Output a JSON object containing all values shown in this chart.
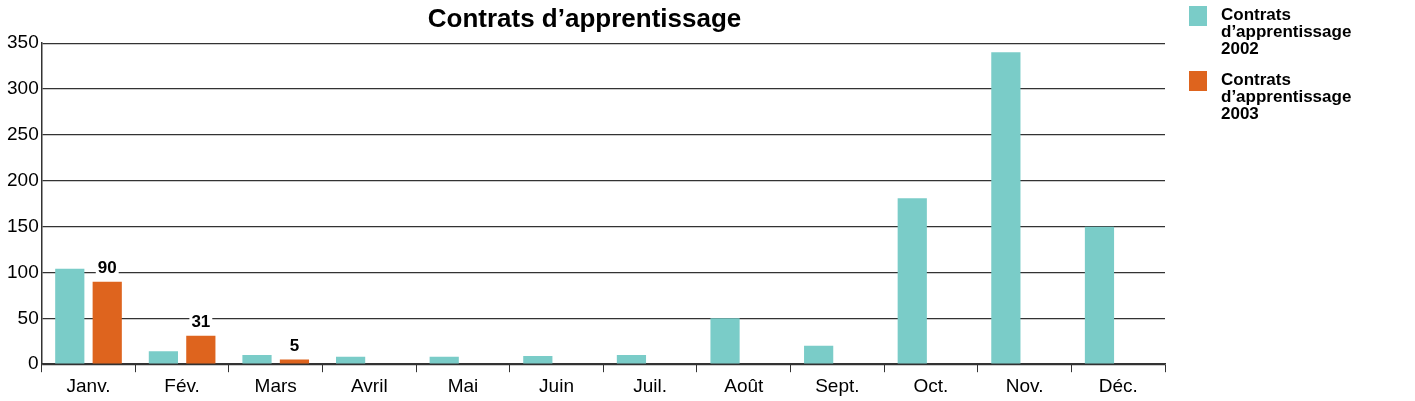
{
  "chart_data": {
    "type": "bar",
    "title": "Contrats d’apprentissage",
    "categories": [
      "Janv.",
      "Fév.",
      "Mars",
      "Avril",
      "Mai",
      "Juin",
      "Juil.",
      "Août",
      "Sept.",
      "Oct.",
      "Nov.",
      "Déc."
    ],
    "series": [
      {
        "name": "Contrats d’apprentissage 2002",
        "color": "#7accc8",
        "values": [
          104,
          14,
          10,
          8,
          8,
          9,
          10,
          50,
          20,
          181,
          340,
          150
        ]
      },
      {
        "name": "Contrats d’apprentissage 2003",
        "color": "#de641e",
        "values": [
          90,
          31,
          5,
          null,
          null,
          null,
          null,
          null,
          null,
          null,
          null,
          null
        ],
        "value_labels": [
          "90",
          "31",
          "5",
          null,
          null,
          null,
          null,
          null,
          null,
          null,
          null,
          null
        ]
      }
    ],
    "ylim": [
      0,
      350
    ],
    "yticks": [
      0,
      50,
      100,
      150,
      200,
      250,
      300,
      350
    ],
    "grid": "y",
    "legend": "top right"
  }
}
